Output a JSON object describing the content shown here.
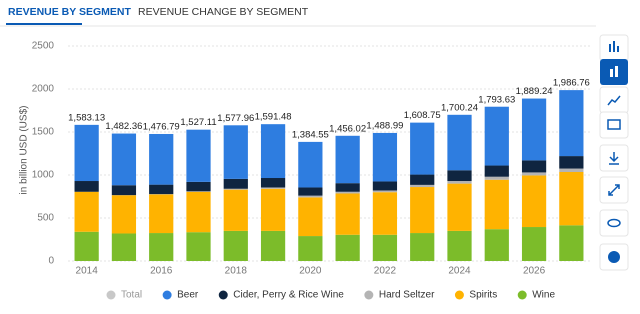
{
  "tabs": [
    "REVENUE BY SEGMENT",
    "REVENUE CHANGE BY SEGMENT"
  ],
  "chart_data": {
    "type": "stacked-bar",
    "y_label": "in billion USD (US$)",
    "categories": [
      "2014",
      null,
      "2016",
      null,
      "2018",
      null,
      "2020",
      null,
      "2022",
      null,
      "2024",
      null,
      "2026",
      null
    ],
    "series": [
      {
        "name": "Total",
        "color": "#c8c8c8",
        "values": [
          1583.13,
          1482.36,
          1476.79,
          1527.11,
          1577.96,
          1591.48,
          1384.55,
          1456.02,
          1488.99,
          1608.75,
          1700.24,
          1793.63,
          1889.24,
          1986.76
        ],
        "value_labels": [
          "1,583.13",
          "1,482.36",
          "1,476.79",
          "1,527.11",
          "1,577.96",
          "1,591.48",
          "1,384.55",
          "1,456.02",
          "1,488.99",
          "1,608.75",
          "1,700.24",
          "1,793.63",
          "1,889.24",
          "1,986.76"
        ]
      },
      {
        "name": "Beer",
        "color": "#2e7de0",
        "values": [
          653,
          601,
          589,
          607,
          623,
          626,
          530,
          551,
          564,
          604,
          645,
          684,
          719,
          767
        ]
      },
      {
        "name": "Cider, Perry & Rice Wine",
        "color": "#0f2540",
        "values": [
          125,
          115,
          110,
          110,
          115,
          110,
          95,
          100,
          105,
          120,
          125,
          130,
          140,
          145
        ]
      },
      {
        "name": "Hard Seltzer",
        "color": "#b4b4b4",
        "values": [
          0,
          1,
          3,
          5,
          10,
          15,
          20,
          20,
          20,
          25,
          30,
          35,
          35,
          40
        ]
      },
      {
        "name": "Spirits",
        "color": "#ffb300",
        "values": [
          465,
          445,
          450,
          470,
          480,
          490,
          450,
          480,
          495,
          535,
          550,
          575,
          600,
          620
        ]
      },
      {
        "name": "Wine",
        "color": "#7cbc2a",
        "values": [
          340,
          320,
          325,
          335,
          350,
          350,
          290,
          305,
          305,
          325,
          350,
          370,
          395,
          415
        ]
      }
    ],
    "ylim": [
      0,
      2500
    ],
    "yticks": [
      0,
      500,
      1000,
      1500,
      2000,
      2500
    ],
    "grid": true
  }
}
